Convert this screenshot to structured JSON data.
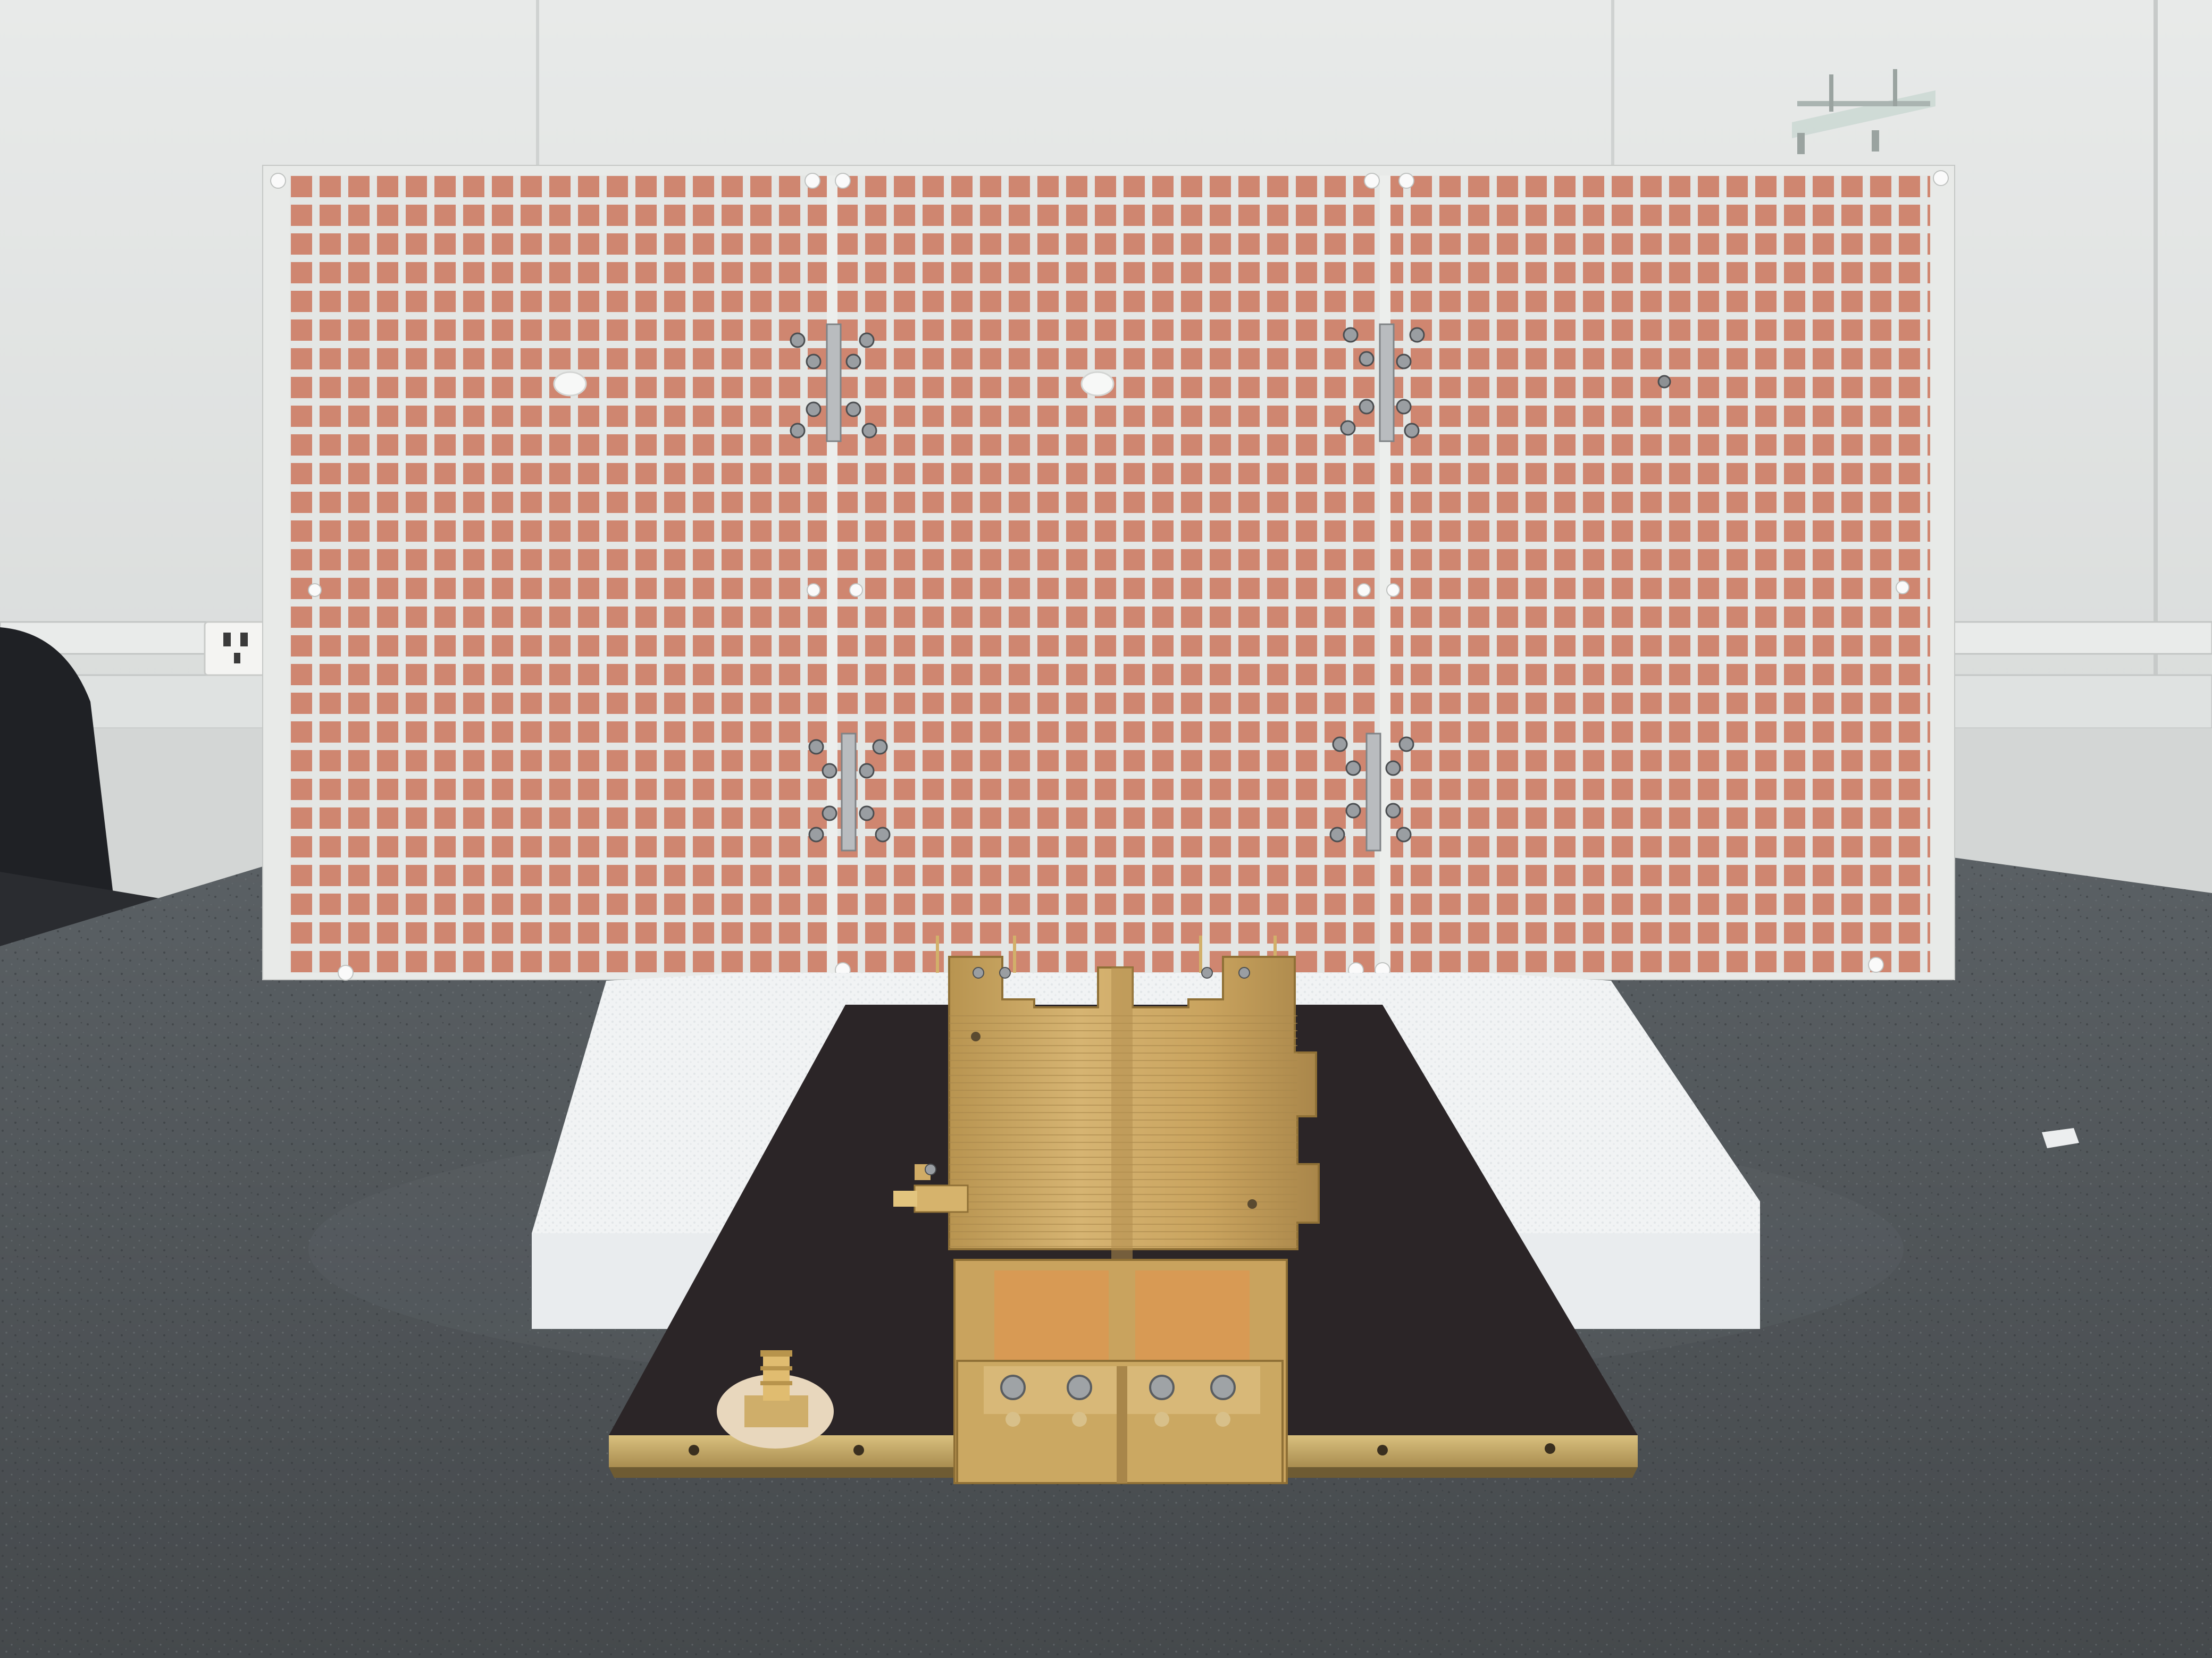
{
  "photo": {
    "subject": "",
    "colors": {
      "wall": "#e3e6e5",
      "wall_shadow": "#c9ccca",
      "wall_lines": "#b8bcba",
      "table": "#50565a",
      "table_speckle": "#3c4145",
      "panel_substrate": "#e6e8e6",
      "copper_patch": "#d08872",
      "copper_dark": "#b8705c",
      "foam": "#f2f4f5",
      "plate": "#2a2426",
      "brass": "#c7a25a",
      "brass_light": "#e2c47e",
      "brass_dark": "#8f7036",
      "copper_inner": "#d49a5a",
      "chair": "#202226",
      "screw": "#9a9ea2",
      "socket": "#f4f4f2"
    }
  }
}
